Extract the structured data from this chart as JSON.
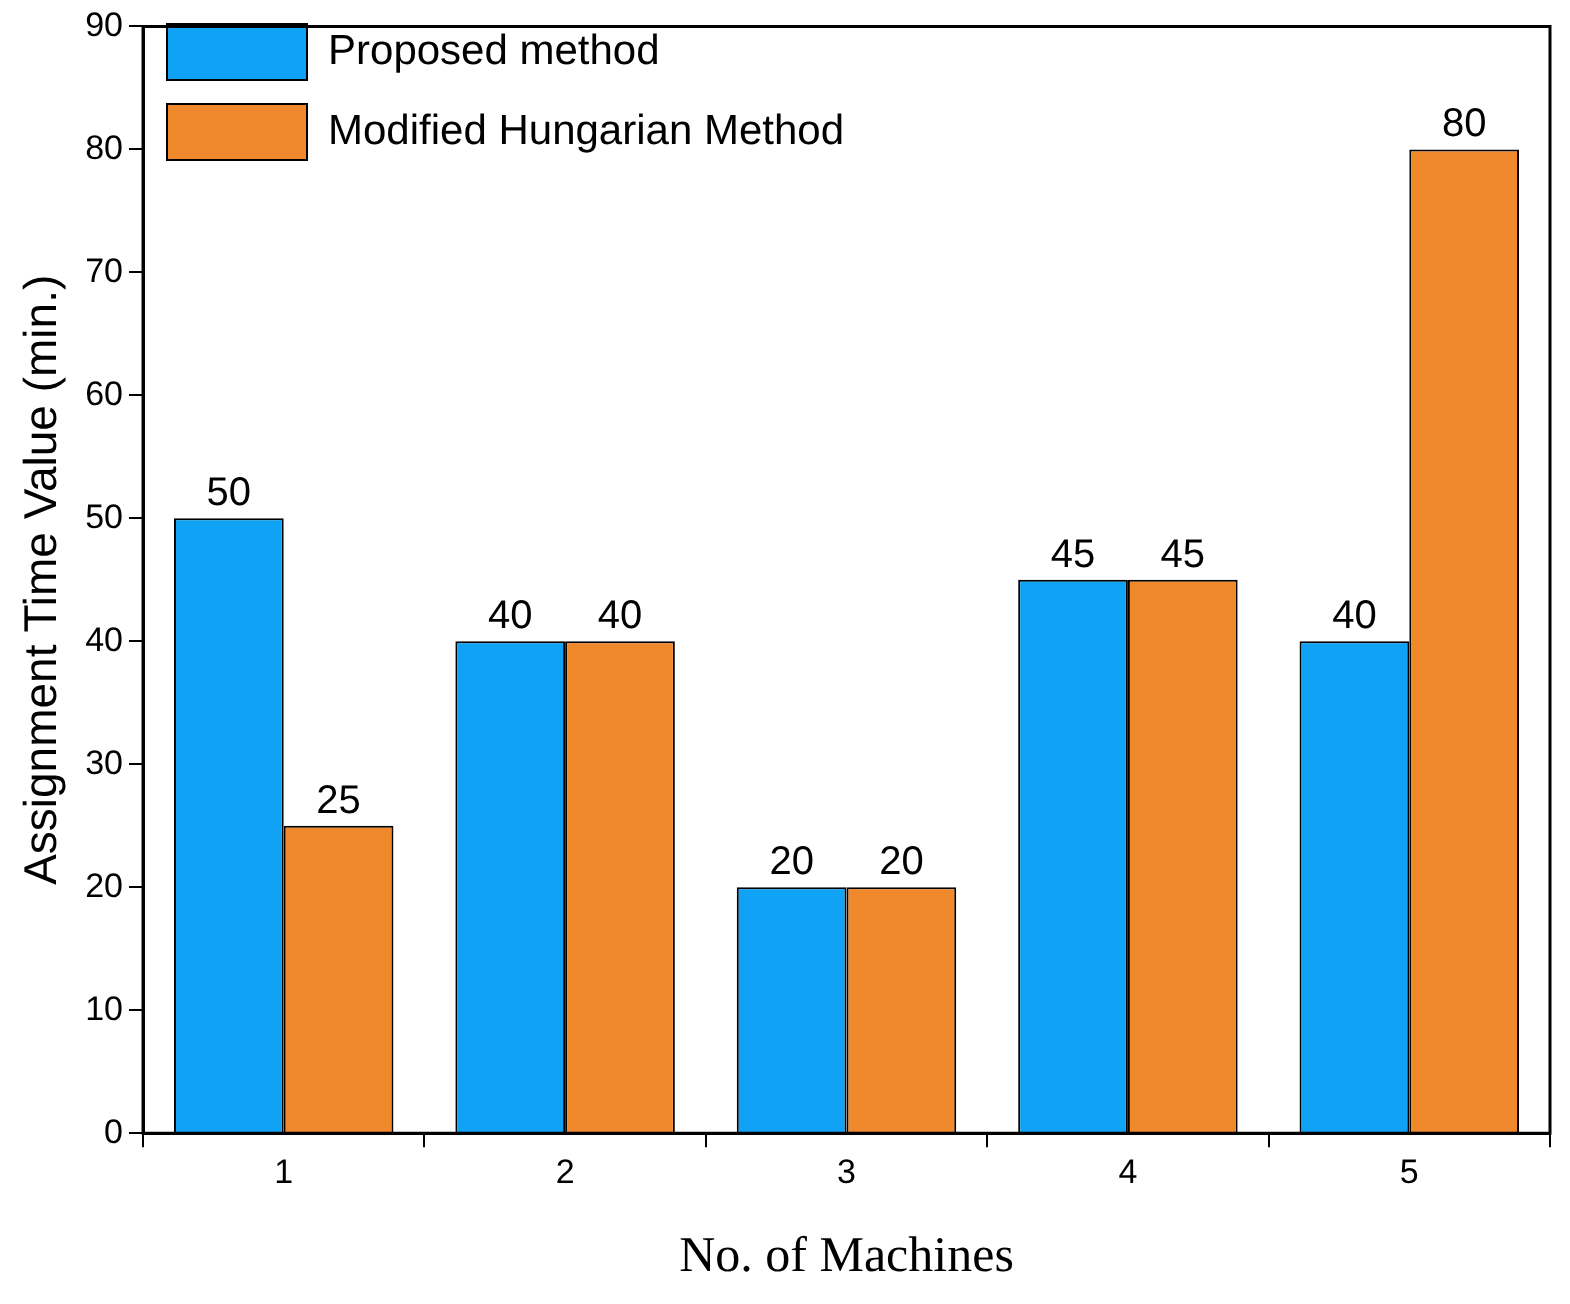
{
  "chart_data": {
    "type": "bar",
    "xlabel": "No. of Machines",
    "ylabel": "Assignment Time Value (min.)",
    "categories": [
      "1",
      "2",
      "3",
      "4",
      "5"
    ],
    "series": [
      {
        "name": "Proposed method",
        "color": "#0fa2f5",
        "values": [
          50,
          40,
          20,
          45,
          40
        ]
      },
      {
        "name": "Modified Hungarian Method",
        "color": "#f0882c",
        "values": [
          25,
          40,
          20,
          45,
          80
        ]
      }
    ],
    "ylim": [
      0,
      90
    ],
    "yticks": [
      0,
      10,
      20,
      30,
      40,
      50,
      60,
      70,
      80,
      90
    ],
    "grid": false,
    "legend": "top left",
    "data_labels": true
  }
}
